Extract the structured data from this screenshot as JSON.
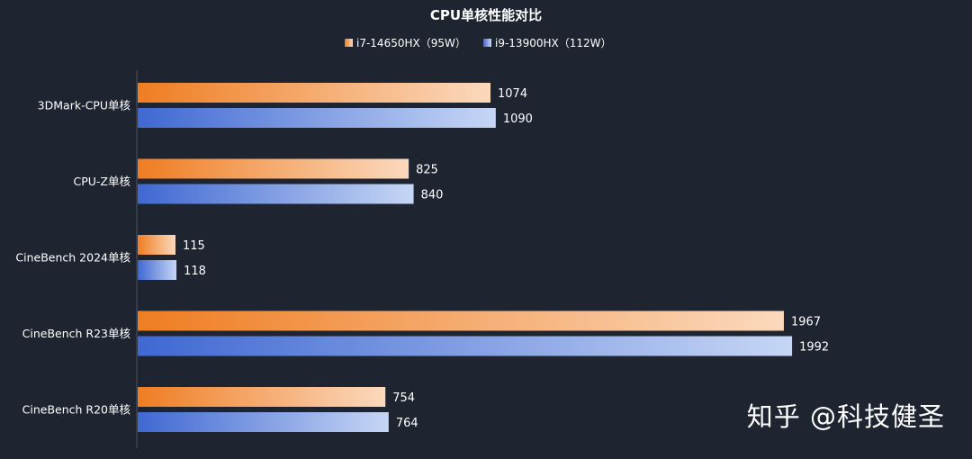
{
  "chart_data": {
    "type": "bar",
    "orientation": "horizontal",
    "title": "CPU单核性能对比",
    "legend_position": "top",
    "categories": [
      "3DMark-CPU单核",
      "CPU-Z单核",
      "CineBench 2024单核",
      "CineBench R23单核",
      "CineBench R20单核"
    ],
    "series": [
      {
        "name": "i7-14650HX（95W）",
        "values": [
          1074,
          825,
          115,
          1967,
          754
        ],
        "color": "#f0883a"
      },
      {
        "name": "i9-13900HX（112W）",
        "values": [
          1090,
          840,
          118,
          1992,
          764
        ],
        "color": "#4f78d8"
      }
    ],
    "xlim": [
      0,
      2000
    ],
    "grid": false
  },
  "watermark": "知乎 @科技健圣"
}
